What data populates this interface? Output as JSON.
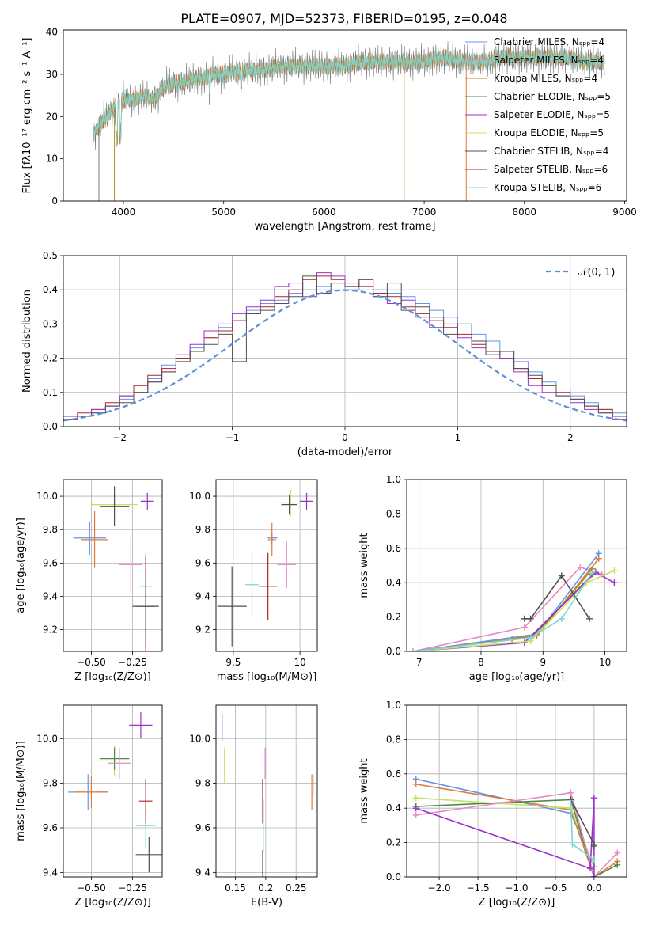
{
  "figure": {
    "title": "PLATE=0907, MJD=52373, FIBERID=0195, z=0.048"
  },
  "colors": {
    "blue": "#6495ed",
    "orange": "#e07b39",
    "olive": "#b5891c",
    "green": "#4a8a4a",
    "purple": "#9932cc",
    "yellow": "#c8e060",
    "dark": "#505050",
    "red": "#b22222",
    "cyan": "#7fd4d4",
    "pink": "#e88ac8",
    "observed": "#777777",
    "normal": "#5b8fd9"
  },
  "chart_data": [
    {
      "id": "spectrum",
      "type": "line",
      "xlabel": "wavelength [Angstrom, rest frame]",
      "ylabel": "Flux [fλ10⁻¹⁷ erg cm⁻² s⁻¹ A⁻¹]",
      "xlim": [
        3400,
        9020
      ],
      "ylim": [
        0,
        40.5
      ],
      "xticks": [
        4000,
        5000,
        6000,
        7000,
        8000,
        9000
      ],
      "yticks": [
        0,
        10,
        20,
        30,
        40
      ],
      "grid": false,
      "legend_placement": "top-right",
      "legend": [
        {
          "label": "Chabrier MILES, Nₛₚₚ=4",
          "color": "blue"
        },
        {
          "label": "Salpeter MILES, Nₛₚₚ=4",
          "color": "pink"
        },
        {
          "label": "Kroupa MILES, Nₛₚₚ=4",
          "color": "olive"
        },
        {
          "label": "Chabrier ELODIE, Nₛₚₚ=5",
          "color": "green"
        },
        {
          "label": "Salpeter ELODIE, Nₛₚₚ=5",
          "color": "purple"
        },
        {
          "label": "Kroupa ELODIE, Nₛₚₚ=5",
          "color": "yellow"
        },
        {
          "label": "Chabrier STELIB, Nₛₚₚ=4",
          "color": "dark"
        },
        {
          "label": "Salpeter STELIB, Nₛₚₚ=6",
          "color": "red"
        },
        {
          "label": "Kroupa STELIB, Nₛₚₚ=6",
          "color": "cyan"
        }
      ],
      "observed_envelope": {
        "x": [
          3700,
          3800,
          3900,
          4000,
          4100,
          4200,
          4300,
          4400,
          4500,
          4600,
          4700,
          4800,
          4900,
          5000,
          5200,
          5400,
          5600,
          5800,
          6000,
          6200,
          6400,
          6600,
          6800,
          7000,
          7200,
          7400,
          7600,
          7800,
          8000,
          8200,
          8400,
          8600,
          8800
        ],
        "y": [
          16,
          19,
          22,
          24,
          24,
          25,
          24,
          27,
          28,
          28,
          29,
          29,
          30,
          30,
          31,
          31,
          32,
          32,
          32,
          32,
          33,
          33,
          33,
          33,
          34,
          33,
          33,
          34,
          34,
          34,
          34,
          33,
          33
        ]
      }
    },
    {
      "id": "residual-hist",
      "type": "area",
      "xlabel": "(data-model)/error",
      "ylabel": "Normed distribution",
      "xlim": [
        -2.5,
        2.5
      ],
      "ylim": [
        0,
        0.5
      ],
      "xticks": [
        -2,
        -1,
        0,
        1,
        2
      ],
      "yticks": [
        0.0,
        0.1,
        0.2,
        0.3,
        0.4,
        0.5
      ],
      "grid": true,
      "legend_placement": "top-right",
      "legend": [
        {
          "label": "𝒩(0, 1)",
          "color": "normal"
        }
      ],
      "bin_width": 0.1,
      "series": [
        {
          "color": "blue",
          "values": [
            0.02,
            0.03,
            0.04,
            0.06,
            0.08,
            0.11,
            0.14,
            0.18,
            0.2,
            0.23,
            0.26,
            0.29,
            0.31,
            0.34,
            0.36,
            0.37,
            0.39,
            0.4,
            0.41,
            0.42,
            0.4,
            0.41,
            0.4,
            0.39,
            0.38,
            0.36,
            0.34,
            0.32,
            0.3,
            0.27,
            0.25,
            0.22,
            0.19,
            0.16,
            0.13,
            0.11,
            0.09,
            0.07,
            0.05,
            0.04,
            0.03
          ]
        },
        {
          "color": "red",
          "values": [
            0.03,
            0.04,
            0.05,
            0.07,
            0.09,
            0.12,
            0.15,
            0.17,
            0.2,
            0.22,
            0.26,
            0.28,
            0.31,
            0.33,
            0.35,
            0.38,
            0.4,
            0.43,
            0.44,
            0.43,
            0.42,
            0.41,
            0.39,
            0.38,
            0.35,
            0.33,
            0.31,
            0.29,
            0.27,
            0.24,
            0.22,
            0.2,
            0.17,
            0.14,
            0.12,
            0.1,
            0.08,
            0.06,
            0.05,
            0.03,
            0.02
          ]
        },
        {
          "color": "purple",
          "values": [
            0.02,
            0.03,
            0.05,
            0.06,
            0.09,
            0.1,
            0.13,
            0.16,
            0.21,
            0.24,
            0.28,
            0.3,
            0.33,
            0.35,
            0.37,
            0.41,
            0.42,
            0.38,
            0.45,
            0.44,
            0.41,
            0.43,
            0.38,
            0.36,
            0.37,
            0.32,
            0.29,
            0.3,
            0.26,
            0.23,
            0.21,
            0.2,
            0.16,
            0.12,
            0.1,
            0.09,
            0.07,
            0.05,
            0.04,
            0.02,
            0.02
          ]
        },
        {
          "color": "dark",
          "values": [
            0.03,
            0.03,
            0.04,
            0.06,
            0.07,
            0.1,
            0.13,
            0.16,
            0.19,
            0.22,
            0.24,
            0.27,
            0.19,
            0.33,
            0.34,
            0.36,
            0.38,
            0.44,
            0.39,
            0.42,
            0.41,
            0.43,
            0.38,
            0.42,
            0.34,
            0.35,
            0.32,
            0.27,
            0.3,
            0.25,
            0.21,
            0.22,
            0.17,
            0.15,
            0.12,
            0.09,
            0.08,
            0.06,
            0.04,
            0.03,
            0.02
          ]
        }
      ],
      "normal_curve": {
        "mean": 0,
        "sigma": 1
      }
    },
    {
      "id": "age-vs-Z",
      "type": "scatter",
      "xlabel": "Z [log₁₀(Z/Z⊙)]",
      "ylabel": "age  [log₁₀(age/yr)]",
      "xlim": [
        -0.67,
        -0.07
      ],
      "ylim": [
        9.07,
        10.1
      ],
      "xticks": [
        -0.5,
        -0.25
      ],
      "xticklabels": [
        "−0.50",
        "−0.25"
      ],
      "yticks": [
        9.2,
        9.4,
        9.6,
        9.8,
        10.0
      ],
      "grid": true,
      "points": [
        {
          "x": -0.51,
          "y": 9.75,
          "xerr": 0.1,
          "yerr": 0.1,
          "color": "blue"
        },
        {
          "x": -0.48,
          "y": 9.74,
          "xerr": 0.08,
          "yerr": 0.17,
          "color": "orange"
        },
        {
          "x": -0.36,
          "y": 9.95,
          "xerr": 0.14,
          "yerr": 0.06,
          "color": "yellow"
        },
        {
          "x": -0.36,
          "y": 9.94,
          "xerr": 0.09,
          "yerr": 0.12,
          "color": "dark"
        },
        {
          "x": -0.16,
          "y": 9.97,
          "xerr": 0.04,
          "yerr": 0.05,
          "color": "purple"
        },
        {
          "x": -0.26,
          "y": 9.59,
          "xerr": 0.07,
          "yerr": 0.17,
          "color": "pink"
        },
        {
          "x": -0.17,
          "y": 9.46,
          "xerr": 0.04,
          "yerr": 0.2,
          "color": "cyan"
        },
        {
          "x": -0.17,
          "y": 9.34,
          "xerr": 0.06,
          "yerr": 0.3,
          "color": "red"
        },
        {
          "x": -0.17,
          "y": 9.34,
          "xerr": 0.08,
          "yerr": 0.22,
          "color": "dark"
        }
      ]
    },
    {
      "id": "age-vs-mass",
      "type": "scatter",
      "xlabel": "mass [log₁₀(M/M⊙)]",
      "ylabel": "",
      "xlim": [
        9.37,
        10.13
      ],
      "ylim": [
        9.07,
        10.1
      ],
      "xticks": [
        9.5,
        10.0
      ],
      "yticks": [
        9.2,
        9.4,
        9.6,
        9.8,
        10.0
      ],
      "grid": true,
      "points": [
        {
          "x": 9.79,
          "y": 9.75,
          "xerr": 0.04,
          "yerr": 0.04,
          "color": "blue"
        },
        {
          "x": 9.79,
          "y": 9.74,
          "xerr": 0.03,
          "yerr": 0.1,
          "color": "orange"
        },
        {
          "x": 9.93,
          "y": 9.96,
          "xerr": 0.08,
          "yerr": 0.08,
          "color": "yellow"
        },
        {
          "x": 9.92,
          "y": 9.95,
          "xerr": 0.06,
          "yerr": 0.06,
          "color": "dark"
        },
        {
          "x": 10.05,
          "y": 9.97,
          "xerr": 0.05,
          "yerr": 0.05,
          "color": "purple"
        },
        {
          "x": 9.9,
          "y": 9.59,
          "xerr": 0.07,
          "yerr": 0.14,
          "color": "pink"
        },
        {
          "x": 9.64,
          "y": 9.47,
          "xerr": 0.05,
          "yerr": 0.2,
          "color": "cyan"
        },
        {
          "x": 9.76,
          "y": 9.46,
          "xerr": 0.07,
          "yerr": 0.2,
          "color": "red"
        },
        {
          "x": 9.49,
          "y": 9.34,
          "xerr": 0.11,
          "yerr": 0.24,
          "color": "dark"
        }
      ]
    },
    {
      "id": "weight-vs-age",
      "type": "line",
      "xlabel": "age  [log₁₀(age/yr)]",
      "ylabel": "mass weight",
      "xlim": [
        6.8,
        10.35
      ],
      "ylim": [
        0,
        1
      ],
      "xticks": [
        7,
        8,
        9,
        10
      ],
      "yticks": [
        0.0,
        0.2,
        0.4,
        0.6,
        0.8,
        1.0
      ],
      "grid": true,
      "series": [
        {
          "color": "pink",
          "x": [
            6.9,
            8.7,
            9.6,
            9.95
          ],
          "y": [
            0.0,
            0.14,
            0.49,
            0.45
          ]
        },
        {
          "color": "blue",
          "x": [
            6.9,
            8.9,
            9.9
          ],
          "y": [
            0.0,
            0.1,
            0.57
          ]
        },
        {
          "color": "orange",
          "x": [
            6.9,
            8.9,
            9.9
          ],
          "y": [
            0.0,
            0.09,
            0.54
          ]
        },
        {
          "color": "olive",
          "x": [
            6.9,
            8.5,
            8.9,
            9.8
          ],
          "y": [
            0.0,
            0.07,
            0.1,
            0.48
          ]
        },
        {
          "color": "green",
          "x": [
            6.9,
            8.8,
            9.8
          ],
          "y": [
            0.0,
            0.08,
            0.45
          ]
        },
        {
          "color": "purple",
          "x": [
            6.9,
            8.7,
            9.85,
            10.15
          ],
          "y": [
            0.0,
            0.05,
            0.46,
            0.4
          ]
        },
        {
          "color": "yellow",
          "x": [
            6.9,
            8.8,
            9.7,
            10.15
          ],
          "y": [
            0.0,
            0.06,
            0.4,
            0.47
          ]
        },
        {
          "color": "dark",
          "x": [
            8.7,
            8.8,
            9.3,
            9.75
          ],
          "y": [
            0.19,
            0.19,
            0.44,
            0.19
          ]
        },
        {
          "color": "cyan",
          "x": [
            6.9,
            8.8,
            9.3,
            9.8
          ],
          "y": [
            0.0,
            0.08,
            0.19,
            0.46
          ]
        }
      ]
    },
    {
      "id": "mass-vs-Z",
      "type": "scatter",
      "xlabel": "Z [log₁₀(Z/Z⊙)]",
      "ylabel": "mass [log₁₀(M/M⊙)]",
      "xlim": [
        -0.67,
        -0.07
      ],
      "ylim": [
        9.38,
        10.15
      ],
      "xticks": [
        -0.5,
        -0.25
      ],
      "xticklabels": [
        "−0.50",
        "−0.25"
      ],
      "yticks": [
        9.4,
        9.6,
        9.8,
        10.0
      ],
      "grid": true,
      "points": [
        {
          "x": -0.52,
          "y": 9.76,
          "xerr": 0.12,
          "yerr": 0.08,
          "color": "blue"
        },
        {
          "x": -0.5,
          "y": 9.76,
          "xerr": 0.1,
          "yerr": 0.07,
          "color": "orange"
        },
        {
          "x": -0.36,
          "y": 9.9,
          "xerr": 0.14,
          "yerr": 0.07,
          "color": "yellow"
        },
        {
          "x": -0.36,
          "y": 9.91,
          "xerr": 0.09,
          "yerr": 0.05,
          "color": "green"
        },
        {
          "x": -0.2,
          "y": 10.06,
          "xerr": 0.07,
          "yerr": 0.06,
          "color": "purple"
        },
        {
          "x": -0.33,
          "y": 9.89,
          "xerr": 0.07,
          "yerr": 0.07,
          "color": "pink"
        },
        {
          "x": -0.17,
          "y": 9.61,
          "xerr": 0.06,
          "yerr": 0.1,
          "color": "cyan"
        },
        {
          "x": -0.17,
          "y": 9.72,
          "xerr": 0.04,
          "yerr": 0.1,
          "color": "red"
        },
        {
          "x": -0.15,
          "y": 9.48,
          "xerr": 0.08,
          "yerr": 0.08,
          "color": "dark"
        }
      ]
    },
    {
      "id": "mass-vs-ebv",
      "type": "scatter",
      "xlabel": "E(B-V)",
      "ylabel": "",
      "xlim": [
        0.118,
        0.285
      ],
      "ylim": [
        9.38,
        10.15
      ],
      "xticks": [
        0.15,
        0.2,
        0.25
      ],
      "yticks": [
        9.4,
        9.6,
        9.8,
        10.0
      ],
      "grid": true,
      "points": [
        {
          "x": 0.128,
          "y": 10.05,
          "xerr": 0.0,
          "yerr": 0.06,
          "color": "purple"
        },
        {
          "x": 0.132,
          "y": 9.88,
          "xerr": 0.0,
          "yerr": 0.08,
          "color": "yellow"
        },
        {
          "x": 0.199,
          "y": 9.89,
          "xerr": 0.0,
          "yerr": 0.07,
          "color": "pink"
        },
        {
          "x": 0.195,
          "y": 9.72,
          "xerr": 0.0,
          "yerr": 0.1,
          "color": "red"
        },
        {
          "x": 0.196,
          "y": 9.61,
          "xerr": 0.0,
          "yerr": 0.12,
          "color": "cyan"
        },
        {
          "x": 0.195,
          "y": 9.44,
          "xerr": 0.0,
          "yerr": 0.06,
          "color": "dark"
        },
        {
          "x": 0.276,
          "y": 9.76,
          "xerr": 0.0,
          "yerr": 0.08,
          "color": "orange"
        },
        {
          "x": 0.278,
          "y": 9.79,
          "xerr": 0.0,
          "yerr": 0.05,
          "color": "blue"
        }
      ]
    },
    {
      "id": "weight-vs-Z",
      "type": "line",
      "xlabel": "Z [log₁₀(Z/Z⊙)]",
      "ylabel": "mass weight",
      "xlim": [
        -2.42,
        0.42
      ],
      "ylim": [
        0,
        1
      ],
      "xticks": [
        -2.0,
        -1.5,
        -1.0,
        -0.5,
        0.0
      ],
      "xticklabels": [
        "−2.0",
        "−1.5",
        "−1.0",
        "−0.5",
        "0.0"
      ],
      "yticks": [
        0.0,
        0.2,
        0.4,
        0.6,
        0.8,
        1.0
      ],
      "grid": true,
      "series": [
        {
          "color": "blue",
          "x": [
            -2.3,
            -0.3,
            0.0
          ],
          "y": [
            0.57,
            0.37,
            0.06
          ]
        },
        {
          "color": "orange",
          "x": [
            -2.3,
            -0.3,
            0.0,
            0.3
          ],
          "y": [
            0.54,
            0.39,
            0.0,
            0.09
          ]
        },
        {
          "color": "yellow",
          "x": [
            -2.3,
            -0.3,
            0.0
          ],
          "y": [
            0.46,
            0.4,
            0.06
          ]
        },
        {
          "color": "green",
          "x": [
            -2.3,
            -0.3,
            0.0,
            0.3
          ],
          "y": [
            0.41,
            0.45,
            0.0,
            0.07
          ]
        },
        {
          "color": "pink",
          "x": [
            -2.3,
            -0.3,
            0.0,
            0.3
          ],
          "y": [
            0.36,
            0.49,
            0.0,
            0.14
          ]
        },
        {
          "color": "purple",
          "x": [
            -2.3,
            -0.05,
            0.0,
            0.0
          ],
          "y": [
            0.4,
            0.05,
            0.46,
            0.0
          ]
        },
        {
          "color": "dark",
          "x": [
            -0.3,
            0.0,
            0.0
          ],
          "y": [
            0.45,
            0.19,
            0.18
          ]
        },
        {
          "color": "cyan",
          "x": [
            -0.3,
            -0.28,
            0.0
          ],
          "y": [
            0.43,
            0.19,
            0.1
          ]
        }
      ]
    }
  ]
}
